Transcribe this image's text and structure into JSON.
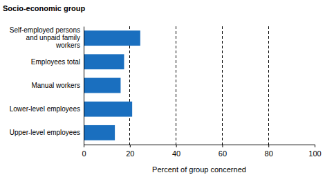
{
  "chart_data": {
    "type": "bar",
    "orientation": "horizontal",
    "title": "Socio-economic group",
    "x_label": "Percent of group concerned",
    "categories": [
      "Self-employed persons and unpaid family workers",
      "Employees total",
      "Manual workers",
      "Lower-level employees",
      "Upper-level employees"
    ],
    "values": [
      24.5,
      17.5,
      16,
      21,
      13.5
    ],
    "color": "#1a6fbf",
    "xlim": [
      0,
      100
    ],
    "xticks": [
      0,
      20,
      40,
      60,
      80,
      100
    ],
    "grid": true
  }
}
